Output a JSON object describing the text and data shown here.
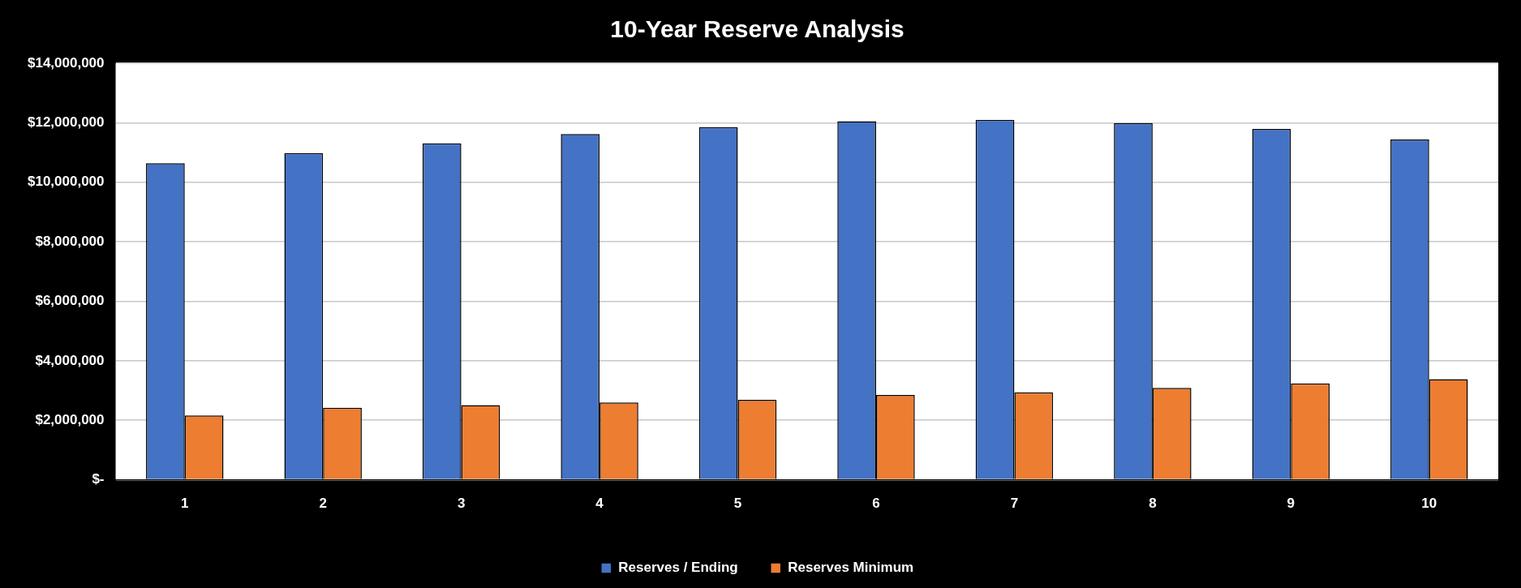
{
  "chart_data": {
    "type": "bar",
    "title": "10-Year Reserve Analysis",
    "categories": [
      "1",
      "2",
      "3",
      "4",
      "5",
      "6",
      "7",
      "8",
      "9",
      "10"
    ],
    "series": [
      {
        "name": "Reserves / Ending",
        "color": "#4472c4",
        "values": [
          10640000,
          10980000,
          11310000,
          11620000,
          11850000,
          12050000,
          12100000,
          11990000,
          11790000,
          11440000
        ]
      },
      {
        "name": "Reserves Minimum",
        "color": "#ed7d31",
        "values": [
          2160000,
          2420000,
          2510000,
          2600000,
          2690000,
          2850000,
          2940000,
          3090000,
          3240000,
          3380000
        ]
      }
    ],
    "ylim": [
      0,
      14000000
    ],
    "yticks": [
      {
        "value": 0,
        "label": "$-"
      },
      {
        "value": 2000000,
        "label": "$2,000,000"
      },
      {
        "value": 4000000,
        "label": "$4,000,000"
      },
      {
        "value": 6000000,
        "label": "$6,000,000"
      },
      {
        "value": 8000000,
        "label": "$8,000,000"
      },
      {
        "value": 10000000,
        "label": "$10,000,000"
      },
      {
        "value": 12000000,
        "label": "$12,000,000"
      },
      {
        "value": 14000000,
        "label": "$14,000,000"
      }
    ],
    "grid": "y",
    "legend": "bottom"
  }
}
